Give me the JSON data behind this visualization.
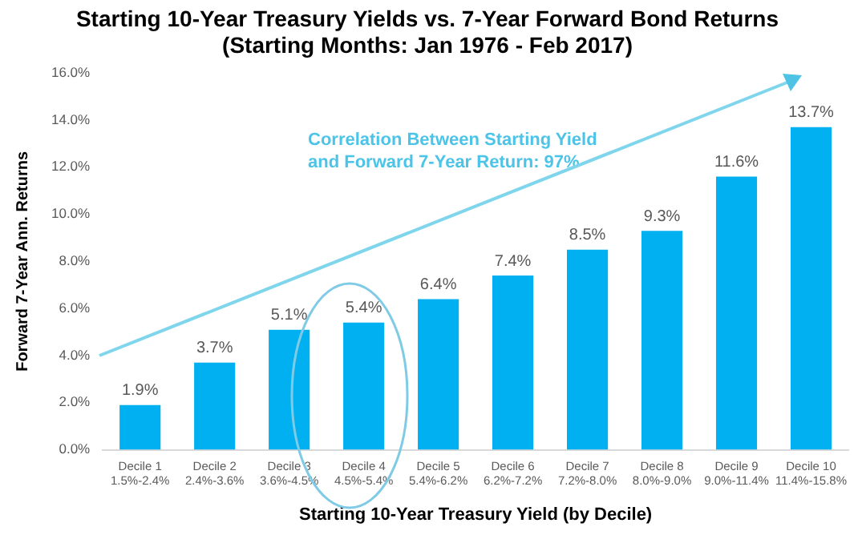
{
  "chart_data": {
    "type": "bar",
    "title": "Starting 10-Year Treasury Yields vs. 7-Year Forward Bond Returns",
    "subtitle": "(Starting Months: Jan 1976 - Feb 2017)",
    "xlabel": "Starting 10-Year Treasury Yield (by Decile)",
    "ylabel": "Forward 7-Year Ann. Returns",
    "categories": [
      "Decile 1\n1.5%-2.4%",
      "Decile 2\n2.4%-3.6%",
      "Decile 3\n3.6%-4.5%",
      "Decile 4\n4.5%-5.4%",
      "Decile 5\n5.4%-6.2%",
      "Decile 6\n6.2%-7.2%",
      "Decile 7\n7.2%-8.0%",
      "Decile 8\n8.0%-9.0%",
      "Decile 9\n9.0%-11.4%",
      "Decile 10\n11.4%-15.8%"
    ],
    "values": [
      1.9,
      3.7,
      5.1,
      5.4,
      6.4,
      7.4,
      8.5,
      9.3,
      11.6,
      13.7
    ],
    "value_labels": [
      "1.9%",
      "3.7%",
      "5.1%",
      "5.4%",
      "6.4%",
      "7.4%",
      "8.5%",
      "9.3%",
      "11.6%",
      "13.7%"
    ],
    "color": "#00b0f0",
    "ylim": [
      0,
      16
    ],
    "yticks": [
      {
        "value": 0,
        "label": "0.0%"
      },
      {
        "value": 2,
        "label": "2.0%"
      },
      {
        "value": 4,
        "label": "4.0%"
      },
      {
        "value": 6,
        "label": "6.0%"
      },
      {
        "value": 8,
        "label": "8.0%"
      },
      {
        "value": 10,
        "label": "10.0%"
      },
      {
        "value": 12,
        "label": "12.0%"
      },
      {
        "value": 14,
        "label": "14.0%"
      },
      {
        "value": 16,
        "label": "16.0%"
      }
    ],
    "annotations": [
      "Correlation Between Starting Yield\nand Forward 7-Year Return: 97%"
    ],
    "grid": false,
    "legend": false
  }
}
